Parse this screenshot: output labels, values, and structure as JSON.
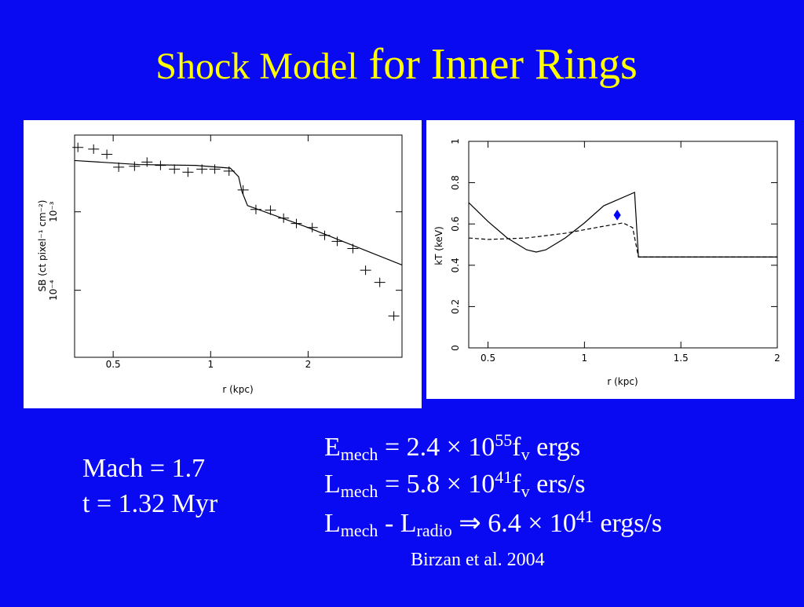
{
  "title": {
    "small": "Shock Model",
    "large": "for Inner Rings"
  },
  "chart_data": [
    {
      "type": "scatter",
      "xlabel": "r (kpc)",
      "ylabel": "SB (ct pixel⁻¹ cm⁻²)",
      "xscale": "log",
      "yscale": "log",
      "xlim": [
        0.38,
        3.9
      ],
      "ylim": [
        1.4e-05,
        0.0095
      ],
      "xticks": [
        0.5,
        1,
        2
      ],
      "yticks": [
        {
          "value": 0.0001,
          "label": "10⁻⁴"
        },
        {
          "value": 0.001,
          "label": "10⁻³"
        }
      ],
      "series": [
        {
          "mode": "points",
          "color": "#000000",
          "x": [
            0.389,
            0.435,
            0.478,
            0.52,
            0.582,
            0.636,
            0.7,
            0.773,
            0.851,
            0.94,
            1.03,
            1.14,
            1.26,
            1.38,
            1.53,
            1.68,
            1.84,
            2.06,
            2.25,
            2.46,
            2.75,
            3.01,
            3.33,
            3.68
          ],
          "values": [
            0.0066,
            0.0063,
            0.0054,
            0.0037,
            0.0038,
            0.0043,
            0.0039,
            0.0035,
            0.0032,
            0.0035,
            0.0035,
            0.0033,
            0.0019,
            0.00107,
            0.00105,
            0.00083,
            0.00071,
            0.00063,
            0.0005,
            0.00042,
            0.00034,
            0.00018,
            0.000126,
            4.7e-05
          ]
        },
        {
          "mode": "line",
          "color": "#000000",
          "x": [
            0.38,
            0.6,
            0.9,
            1.15,
            1.22,
            1.25,
            1.3,
            2,
            3.9
          ],
          "values": [
            0.0045,
            0.004,
            0.0039,
            0.0036,
            0.0028,
            0.0018,
            0.0012,
            0.00063,
            0.00021
          ]
        }
      ]
    },
    {
      "type": "line",
      "xlabel": "r (kpc)",
      "ylabel": "kT (keV)",
      "xlim": [
        0.4,
        2
      ],
      "ylim": [
        0,
        1
      ],
      "xticks": [
        0.5,
        1,
        1.5,
        2
      ],
      "yticks": [
        0,
        0.2,
        0.4,
        0.6,
        0.8,
        1
      ],
      "series": [
        {
          "mode": "line",
          "color": "#000000",
          "x": [
            0.4,
            0.5,
            0.6,
            0.7,
            0.75,
            0.8,
            0.9,
            1.0,
            1.1,
            1.26,
            1.28,
            2
          ],
          "values": [
            0.703,
            0.612,
            0.532,
            0.475,
            0.464,
            0.475,
            0.532,
            0.605,
            0.688,
            0.753,
            0.44,
            0.44
          ]
        },
        {
          "mode": "dashed",
          "color": "#000000",
          "x": [
            0.4,
            0.5,
            0.7,
            0.9,
            1.1,
            1.2,
            1.25,
            1.28,
            2
          ],
          "values": [
            0.532,
            0.525,
            0.532,
            0.555,
            0.589,
            0.605,
            0.582,
            0.44,
            0.44
          ]
        },
        {
          "mode": "diamond",
          "color": "#0000ff",
          "x": [
            1.17
          ],
          "values": [
            0.643
          ]
        }
      ]
    }
  ],
  "params": [
    "Mach = 1.7",
    "t = 1.32 Myr"
  ],
  "equations": [
    [
      [
        "E",
        ""
      ],
      [
        "mech",
        "sub"
      ],
      [
        " = 2.4 × 10",
        ""
      ],
      [
        "55",
        "sup"
      ],
      [
        "f",
        ""
      ],
      [
        "v",
        "sub"
      ],
      [
        " ergs",
        ""
      ]
    ],
    [
      [
        "L",
        ""
      ],
      [
        "mech",
        "sub"
      ],
      [
        " = 5.8 × 10",
        ""
      ],
      [
        "41",
        "sup"
      ],
      [
        "f",
        ""
      ],
      [
        "v",
        "sub"
      ],
      [
        " ers/s",
        ""
      ]
    ],
    [
      [
        "L",
        ""
      ],
      [
        "mech",
        "sub"
      ],
      [
        " - L",
        ""
      ],
      [
        "radio",
        "sub"
      ],
      [
        " ⇒ 6.4 × 10",
        ""
      ],
      [
        "41",
        "sup"
      ],
      [
        " ergs/s",
        ""
      ]
    ]
  ],
  "citation": "Birzan et al. 2004"
}
